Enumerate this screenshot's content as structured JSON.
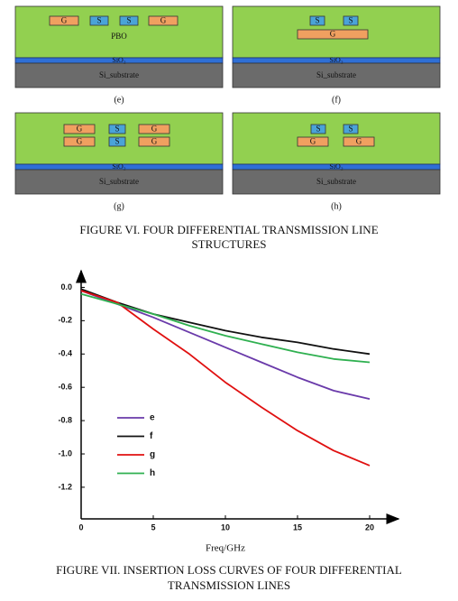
{
  "diagram": {
    "panels": [
      {
        "label": "(e)",
        "dielectric": "PBO",
        "oxide": "SiO₂",
        "substrate": "Si_substrate",
        "boxes": [
          "G",
          "S",
          "S",
          "G"
        ]
      },
      {
        "label": "(f)",
        "oxide": "SiO₂",
        "substrate": "Si_substrate",
        "boxes": [
          "S",
          "S",
          "G"
        ]
      },
      {
        "label": "(g)",
        "oxide": "SiO₂",
        "substrate": "Si_substrate",
        "boxes": [
          "G",
          "S",
          "G",
          "G",
          "S",
          "G"
        ]
      },
      {
        "label": "(h)",
        "oxide": "SiO₂",
        "substrate": "Si_substrate",
        "boxes": [
          "S",
          "S",
          "G",
          "G"
        ]
      }
    ],
    "caption": [
      "FIGURE VI.  FOUR DIFFERENTIAL TRANSMISSION LINE",
      "STRUCTURES"
    ]
  },
  "chart_data": {
    "type": "line",
    "x_label": "Freq/GHz",
    "x": [
      0,
      2.5,
      5,
      7.5,
      10,
      12.5,
      15,
      17.5,
      20
    ],
    "series": [
      {
        "name": "e",
        "color": "#6a3aaa",
        "values": [
          -0.02,
          -0.1,
          -0.18,
          -0.27,
          -0.36,
          -0.45,
          -0.54,
          -0.62,
          -0.67
        ]
      },
      {
        "name": "f",
        "color": "#111111",
        "values": [
          -0.01,
          -0.09,
          -0.16,
          -0.21,
          -0.26,
          -0.3,
          -0.33,
          -0.37,
          -0.4
        ]
      },
      {
        "name": "g",
        "color": "#e01010",
        "values": [
          -0.02,
          -0.09,
          -0.25,
          -0.4,
          -0.57,
          -0.72,
          -0.86,
          -0.98,
          -1.07
        ]
      },
      {
        "name": "h",
        "color": "#2fb050",
        "values": [
          -0.04,
          -0.1,
          -0.16,
          -0.23,
          -0.29,
          -0.34,
          -0.39,
          -0.43,
          -0.45
        ]
      }
    ],
    "xlim": [
      0,
      22
    ],
    "xticks": [
      0,
      5,
      10,
      15,
      20
    ],
    "ylim": [
      -1.39,
      0.1
    ],
    "yticks": [
      {
        "value": 0,
        "label": "0.0"
      },
      -0.2,
      -0.4,
      -0.6,
      -0.8,
      {
        "value": -1,
        "label": "-1.0"
      },
      -1.2
    ],
    "caption": [
      "FIGURE VII.  INSERTION LOSS CURVES OF FOUR DIFFERENTIAL",
      "TRANSMISSION LINES"
    ]
  }
}
